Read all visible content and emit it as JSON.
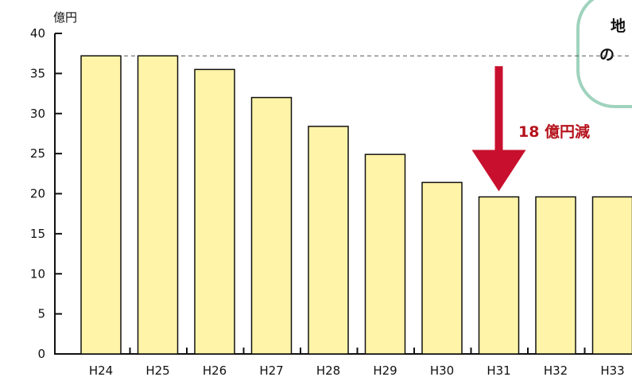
{
  "chart_data": {
    "type": "bar",
    "title": "",
    "xlabel": "",
    "ylabel": "億円",
    "ylim": [
      0,
      40
    ],
    "yticks": [
      0,
      5,
      10,
      15,
      20,
      25,
      30,
      35,
      40
    ],
    "categories": [
      "H24",
      "H25",
      "H26",
      "H27",
      "H28",
      "H29",
      "H30",
      "H31",
      "H32",
      "H33"
    ],
    "values": [
      37.2,
      37.2,
      35.5,
      32,
      28.4,
      24.9,
      21.4,
      19.6,
      19.6,
      19.6
    ],
    "reference_line_value": 37.2,
    "grid": false,
    "legend": "none",
    "colors": {
      "bar_fill": "#fff4a8",
      "bar_stroke": "#111111",
      "arrow": "#c8102e",
      "callout_border": "#9fd3bd"
    },
    "annotation": {
      "text": "18 億円減",
      "from_category": "H24",
      "to_category": "H31"
    },
    "callout": {
      "lines": [
        "地",
        "の"
      ]
    }
  }
}
